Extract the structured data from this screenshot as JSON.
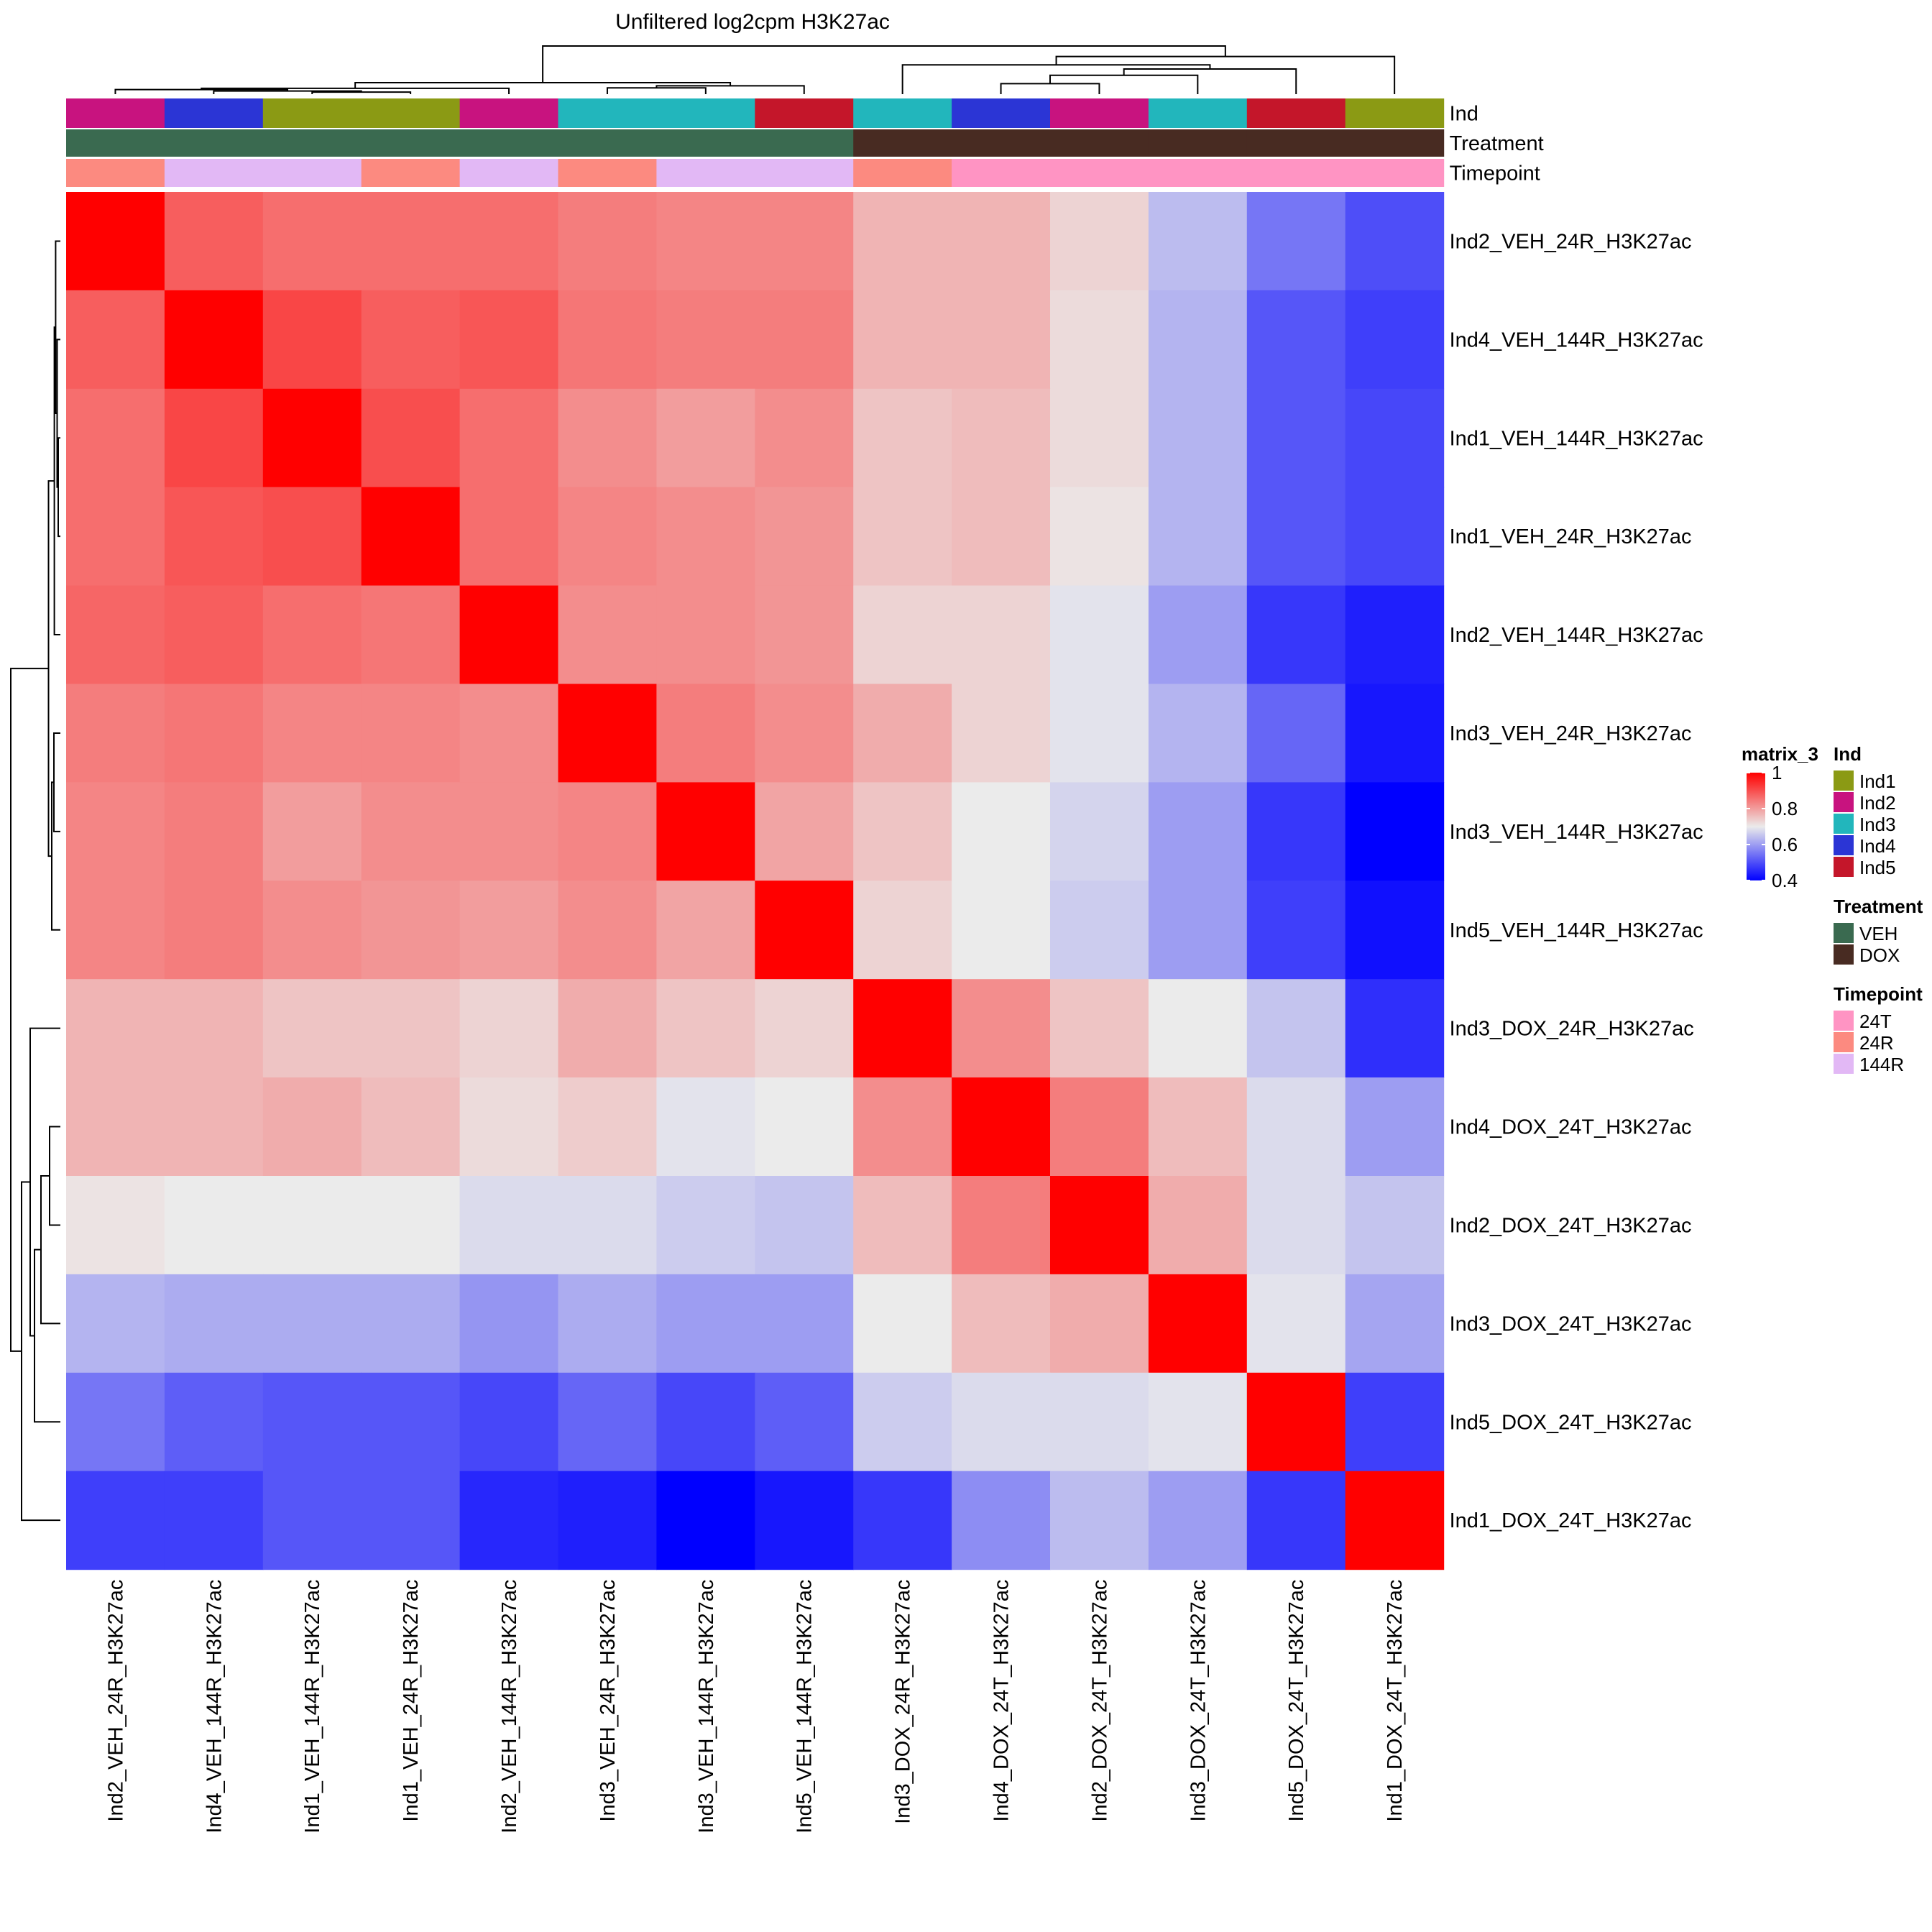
{
  "chart_data": {
    "type": "heatmap",
    "title": "Unfiltered log2cpm H3K27ac",
    "samples": [
      "Ind2_VEH_24R_H3K27ac",
      "Ind4_VEH_144R_H3K27ac",
      "Ind1_VEH_144R_H3K27ac",
      "Ind1_VEH_24R_H3K27ac",
      "Ind2_VEH_144R_H3K27ac",
      "Ind3_VEH_24R_H3K27ac",
      "Ind3_VEH_144R_H3K27ac",
      "Ind5_VEH_144R_H3K27ac",
      "Ind3_DOX_24R_H3K27ac",
      "Ind4_DOX_24T_H3K27ac",
      "Ind2_DOX_24T_H3K27ac",
      "Ind3_DOX_24T_H3K27ac",
      "Ind5_DOX_24T_H3K27ac",
      "Ind1_DOX_24T_H3K27ac"
    ],
    "values": [
      [
        1.0,
        0.88,
        0.86,
        0.86,
        0.86,
        0.84,
        0.83,
        0.83,
        0.77,
        0.77,
        0.73,
        0.64,
        0.55,
        0.5
      ],
      [
        0.88,
        1.0,
        0.91,
        0.88,
        0.89,
        0.85,
        0.84,
        0.84,
        0.77,
        0.77,
        0.72,
        0.63,
        0.51,
        0.48
      ],
      [
        0.86,
        0.91,
        1.0,
        0.9,
        0.86,
        0.82,
        0.8,
        0.82,
        0.75,
        0.76,
        0.72,
        0.63,
        0.51,
        0.49
      ],
      [
        0.86,
        0.89,
        0.9,
        1.0,
        0.86,
        0.83,
        0.82,
        0.81,
        0.75,
        0.76,
        0.71,
        0.63,
        0.51,
        0.49
      ],
      [
        0.87,
        0.88,
        0.86,
        0.85,
        1.0,
        0.82,
        0.82,
        0.81,
        0.73,
        0.73,
        0.69,
        0.6,
        0.47,
        0.44
      ],
      [
        0.84,
        0.85,
        0.83,
        0.83,
        0.82,
        1.0,
        0.84,
        0.82,
        0.78,
        0.73,
        0.69,
        0.63,
        0.53,
        0.43
      ],
      [
        0.83,
        0.84,
        0.8,
        0.82,
        0.82,
        0.83,
        1.0,
        0.79,
        0.75,
        0.7,
        0.67,
        0.6,
        0.47,
        0.4
      ],
      [
        0.83,
        0.84,
        0.82,
        0.81,
        0.8,
        0.82,
        0.79,
        1.0,
        0.73,
        0.7,
        0.66,
        0.6,
        0.48,
        0.42
      ],
      [
        0.77,
        0.77,
        0.75,
        0.75,
        0.73,
        0.78,
        0.75,
        0.73,
        1.0,
        0.82,
        0.75,
        0.7,
        0.65,
        0.46
      ],
      [
        0.77,
        0.77,
        0.78,
        0.76,
        0.72,
        0.74,
        0.69,
        0.7,
        0.82,
        1.0,
        0.84,
        0.76,
        0.68,
        0.6
      ],
      [
        0.71,
        0.7,
        0.7,
        0.7,
        0.68,
        0.68,
        0.66,
        0.65,
        0.76,
        0.84,
        1.0,
        0.78,
        0.68,
        0.65
      ],
      [
        0.63,
        0.62,
        0.62,
        0.62,
        0.59,
        0.62,
        0.6,
        0.6,
        0.7,
        0.76,
        0.78,
        1.0,
        0.69,
        0.61
      ],
      [
        0.55,
        0.52,
        0.51,
        0.51,
        0.49,
        0.53,
        0.49,
        0.52,
        0.66,
        0.68,
        0.68,
        0.69,
        1.0,
        0.48
      ],
      [
        0.48,
        0.48,
        0.51,
        0.51,
        0.45,
        0.44,
        0.4,
        0.43,
        0.47,
        0.58,
        0.64,
        0.6,
        0.47,
        1.0
      ]
    ],
    "annotations": {
      "Ind": [
        "Ind2",
        "Ind4",
        "Ind1",
        "Ind1",
        "Ind2",
        "Ind3",
        "Ind3",
        "Ind5",
        "Ind3",
        "Ind4",
        "Ind2",
        "Ind3",
        "Ind5",
        "Ind1"
      ],
      "Treatment": [
        "VEH",
        "VEH",
        "VEH",
        "VEH",
        "VEH",
        "VEH",
        "VEH",
        "VEH",
        "DOX",
        "DOX",
        "DOX",
        "DOX",
        "DOX",
        "DOX"
      ],
      "Timepoint": [
        "24R",
        "144R",
        "144R",
        "24R",
        "144R",
        "24R",
        "144R",
        "144R",
        "24R",
        "24T",
        "24T",
        "24T",
        "24T",
        "24T"
      ]
    },
    "annotation_tracks": [
      "Ind",
      "Treatment",
      "Timepoint"
    ],
    "color_scale": {
      "name": "matrix_3",
      "range": [
        0.4,
        1.0
      ],
      "ticks": [
        1,
        0.8,
        0.6,
        0.4
      ],
      "tick_labels": [
        "1",
        "0.8",
        "0.6",
        "0.4"
      ],
      "low_color": "#0000ff",
      "mid_value": 0.7,
      "mid_color": "#ebebeb",
      "high_color": "#ff0000"
    },
    "legends": [
      {
        "title": "Ind",
        "entries": [
          {
            "label": "Ind1",
            "color": "#8b9a14"
          },
          {
            "label": "Ind2",
            "color": "#c8137f"
          },
          {
            "label": "Ind3",
            "color": "#22b6bc"
          },
          {
            "label": "Ind4",
            "color": "#2b35d5"
          },
          {
            "label": "Ind5",
            "color": "#c4162a"
          }
        ]
      },
      {
        "title": "Treatment",
        "entries": [
          {
            "label": "VEH",
            "color": "#3a6a50"
          },
          {
            "label": "DOX",
            "color": "#482b22"
          }
        ]
      },
      {
        "title": "Timepoint",
        "entries": [
          {
            "label": "24T",
            "color": "#ff94c3"
          },
          {
            "label": "24R",
            "color": "#fc8a80"
          },
          {
            "label": "144R",
            "color": "#e2b8f5"
          }
        ]
      }
    ],
    "dendrogram": {
      "merges": [
        [
          2,
          3,
          0.1
        ],
        [
          1,
          14,
          0.15
        ],
        [
          0,
          15,
          0.22
        ],
        [
          4,
          16,
          0.28
        ],
        [
          5,
          6,
          0.3
        ],
        [
          18,
          7,
          0.4
        ],
        [
          17,
          19,
          0.55
        ],
        [
          9,
          10,
          0.5
        ],
        [
          11,
          21,
          0.9
        ],
        [
          12,
          22,
          1.2
        ],
        [
          8,
          23,
          1.4
        ],
        [
          13,
          24,
          1.8
        ],
        [
          20,
          25,
          2.3
        ]
      ],
      "max_height": 2.3
    }
  }
}
